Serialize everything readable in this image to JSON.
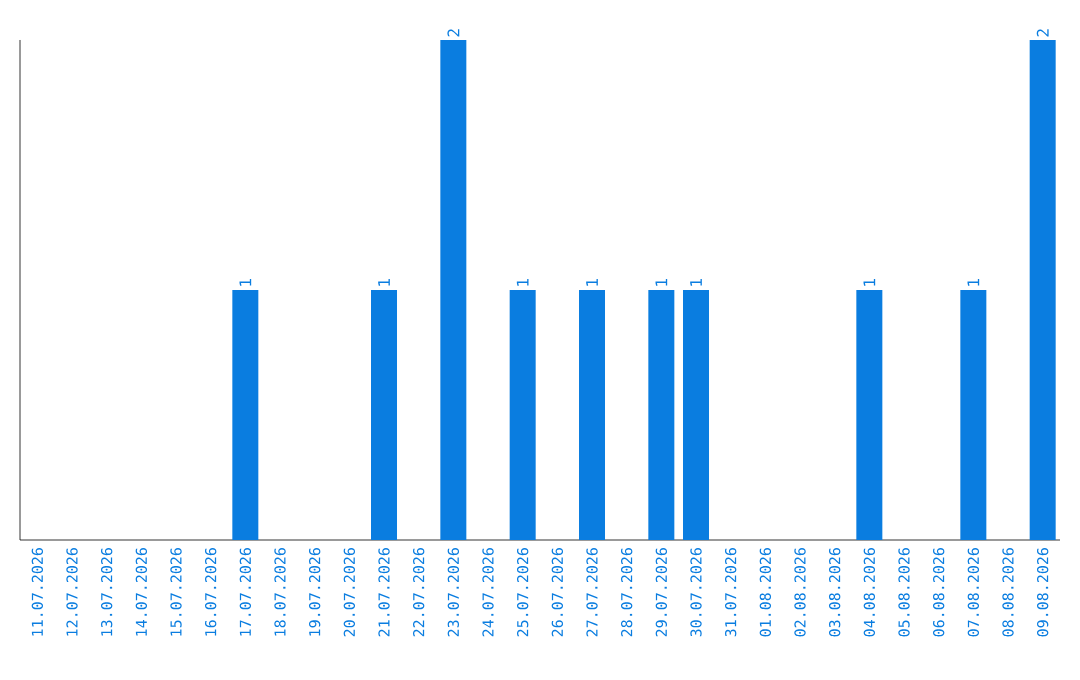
{
  "chart_data": {
    "type": "bar",
    "categories": [
      "11.07.2026",
      "12.07.2026",
      "13.07.2026",
      "14.07.2026",
      "15.07.2026",
      "16.07.2026",
      "17.07.2026",
      "18.07.2026",
      "19.07.2026",
      "20.07.2026",
      "21.07.2026",
      "22.07.2026",
      "23.07.2026",
      "24.07.2026",
      "25.07.2026",
      "26.07.2026",
      "27.07.2026",
      "28.07.2026",
      "29.07.2026",
      "30.07.2026",
      "31.07.2026",
      "01.08.2026",
      "02.08.2026",
      "03.08.2026",
      "04.08.2026",
      "05.08.2026",
      "06.08.2026",
      "07.08.2026",
      "08.08.2026",
      "09.08.2026"
    ],
    "values": [
      0,
      0,
      0,
      0,
      0,
      0,
      1,
      0,
      0,
      0,
      1,
      0,
      2,
      0,
      1,
      0,
      1,
      0,
      1,
      1,
      0,
      0,
      0,
      0,
      1,
      0,
      0,
      1,
      0,
      2
    ],
    "value_labels": [
      null,
      null,
      null,
      null,
      null,
      null,
      "1",
      null,
      null,
      null,
      "1",
      null,
      "2",
      null,
      "1",
      null,
      "1",
      null,
      "1",
      "1",
      null,
      null,
      null,
      null,
      "1",
      null,
      null,
      "1",
      null,
      "2"
    ],
    "color": "#0a7de0",
    "tick_labels": "x"
  }
}
